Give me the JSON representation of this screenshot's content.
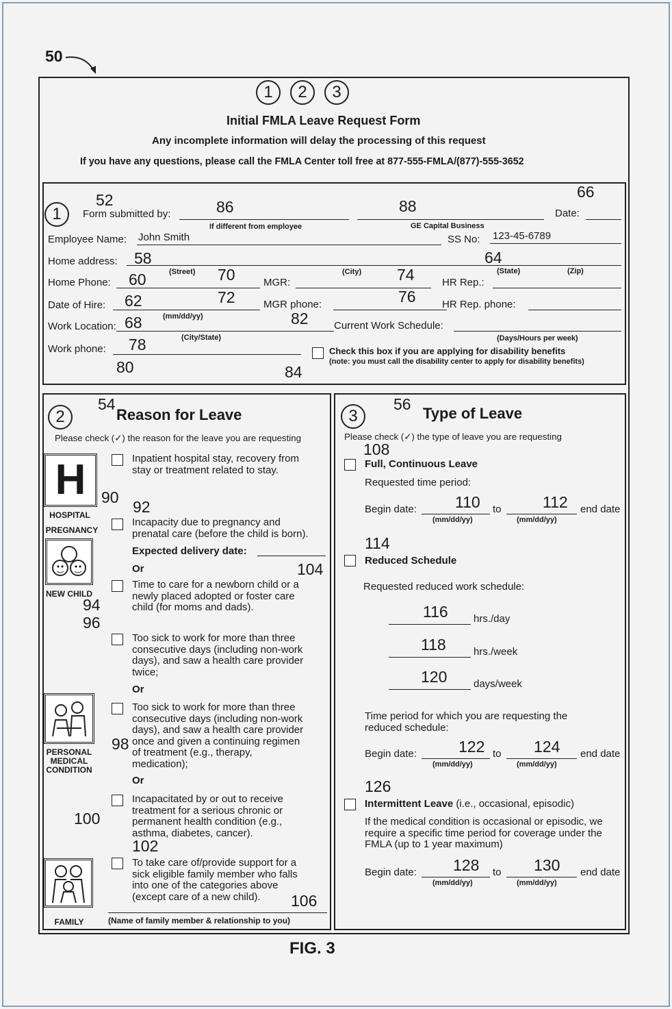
{
  "figure": {
    "ref": "50",
    "label": "FIG. 3"
  },
  "header": {
    "step_circles": [
      "1",
      "2",
      "3"
    ],
    "title": "Initial FMLA Leave Request Form",
    "subtitle": "Any incomplete information will delay the processing of this request",
    "notice": "If you have any questions, please call the FMLA Center toll free at 877-555-FMLA/(877)-555-3652"
  },
  "section1": {
    "circle": "1",
    "refs": {
      "r52": "52",
      "r86": "86",
      "r88": "88",
      "r66": "66",
      "r58": "58",
      "r64": "64",
      "r60": "60",
      "r70": "70",
      "r74": "74",
      "r62": "62",
      "r72": "72",
      "r76": "76",
      "r68": "68",
      "r82": "82",
      "r78": "78",
      "r80": "80",
      "r84": "84"
    },
    "form_submitted_by": "Form submitted by:",
    "if_different": "If different from employee",
    "business": "GE Capital Business",
    "date": "Date:",
    "employee_name": "Employee Name:",
    "employee_name_value": "John Smith",
    "ss_no": "SS No:",
    "ss_no_value": "123-45-6789",
    "home_address": "Home address:",
    "street": "(Street)",
    "city": "(City)",
    "state": "(State)",
    "zip": "(Zip)",
    "home_phone": "Home Phone:",
    "mgr": "MGR:",
    "hr_rep": "HR Rep.:",
    "date_of_hire": "Date of Hire:",
    "mgr_phone": "MGR phone:",
    "hr_rep_phone": "HR Rep. phone:",
    "date_format": "(mm/dd/yy)",
    "work_location": "Work Location:",
    "current_work_schedule": "Current Work Schedule:",
    "city_state": "(City/State)",
    "days_hours": "(Days/Hours per week)",
    "work_phone": "Work phone:",
    "disability_check": "Check this box if you are applying for disability benefits",
    "disability_note": "(note: you must call the disability center to apply for disability benefits)"
  },
  "section2": {
    "circle": "2",
    "refs": {
      "r54": "54",
      "r90": "90",
      "r92": "92",
      "r104": "104",
      "r94": "94",
      "r96": "96",
      "r98": "98",
      "r100": "100",
      "r102": "102",
      "r106": "106"
    },
    "title": "Reason for Leave",
    "instruction": "Please check (✓) the reason for the leave you are requesting",
    "icons": {
      "hospital": "HOSPITAL",
      "hospital_glyph": "H",
      "pregnancy": "PREGNANCY",
      "new_child": "NEW CHILD",
      "personal": "PERSONAL",
      "medical": "MEDICAL",
      "condition": "CONDITION",
      "family": "FAMILY"
    },
    "opt_hospital": [
      "Inpatient hospital stay, recovery from",
      "stay or treatment related to stay."
    ],
    "opt_pregnancy": [
      "Incapacity due to pregnancy and",
      "prenatal care (before the child is born)."
    ],
    "expected_delivery": "Expected delivery date:",
    "or": "Or",
    "opt_newborn": [
      "Time to care for a newborn child or a",
      "newly placed adopted or foster care",
      "child (for moms and dads)."
    ],
    "opt_sick_twice": [
      "Too sick to work for more than three",
      "consecutive days (including non-work",
      "days), and saw a health care provider",
      "twice;"
    ],
    "opt_sick_regimen": [
      "Too sick to work for more than three",
      "consecutive days (including non-work",
      "days), and saw a health care provider",
      "once and given a continuing regimen",
      "of treatment (e.g., therapy,",
      "medication);"
    ],
    "opt_chronic": [
      "Incapacitated by or out to receive",
      "treatment for a serious chronic or",
      "permanent health condition (e.g.,",
      "asthma, diabetes, cancer)."
    ],
    "opt_family": [
      "To take care of/provide support for a",
      "sick eligible family member who falls",
      "into one of the categories above",
      "(except care of a new child)."
    ],
    "family_member_caption": "(Name of family member & relationship to you)"
  },
  "section3": {
    "circle": "3",
    "refs": {
      "r56": "56",
      "r108": "108",
      "r110": "110",
      "r112": "112",
      "r114": "114",
      "r116": "116",
      "r118": "118",
      "r120": "120",
      "r122": "122",
      "r124": "124",
      "r126": "126",
      "r128": "128",
      "r130": "130"
    },
    "title": "Type of Leave",
    "instruction": "Please check (✓) the type of leave you are requesting",
    "full": "Full, Continuous Leave",
    "requested_period": "Requested time period:",
    "begin_date": "Begin date:",
    "to": "to",
    "end_date": "end date",
    "date_format": "(mm/dd/yy)",
    "reduced": "Reduced Schedule",
    "requested_reduced": "Requested reduced work schedule:",
    "hrs_day": "hrs./day",
    "hrs_week": "hrs./week",
    "days_week": "days/week",
    "reduced_period": [
      "Time period for which you are requesting the",
      "reduced schedule:"
    ],
    "intermittent": "Intermittent Leave",
    "intermittent_note": " (i.e., occasional, episodic)",
    "intermittent_desc": [
      "If the medical condition is occasional or episodic, we",
      "require a specific time period for coverage under the",
      "FMLA (up to 1 year maximum)"
    ]
  }
}
